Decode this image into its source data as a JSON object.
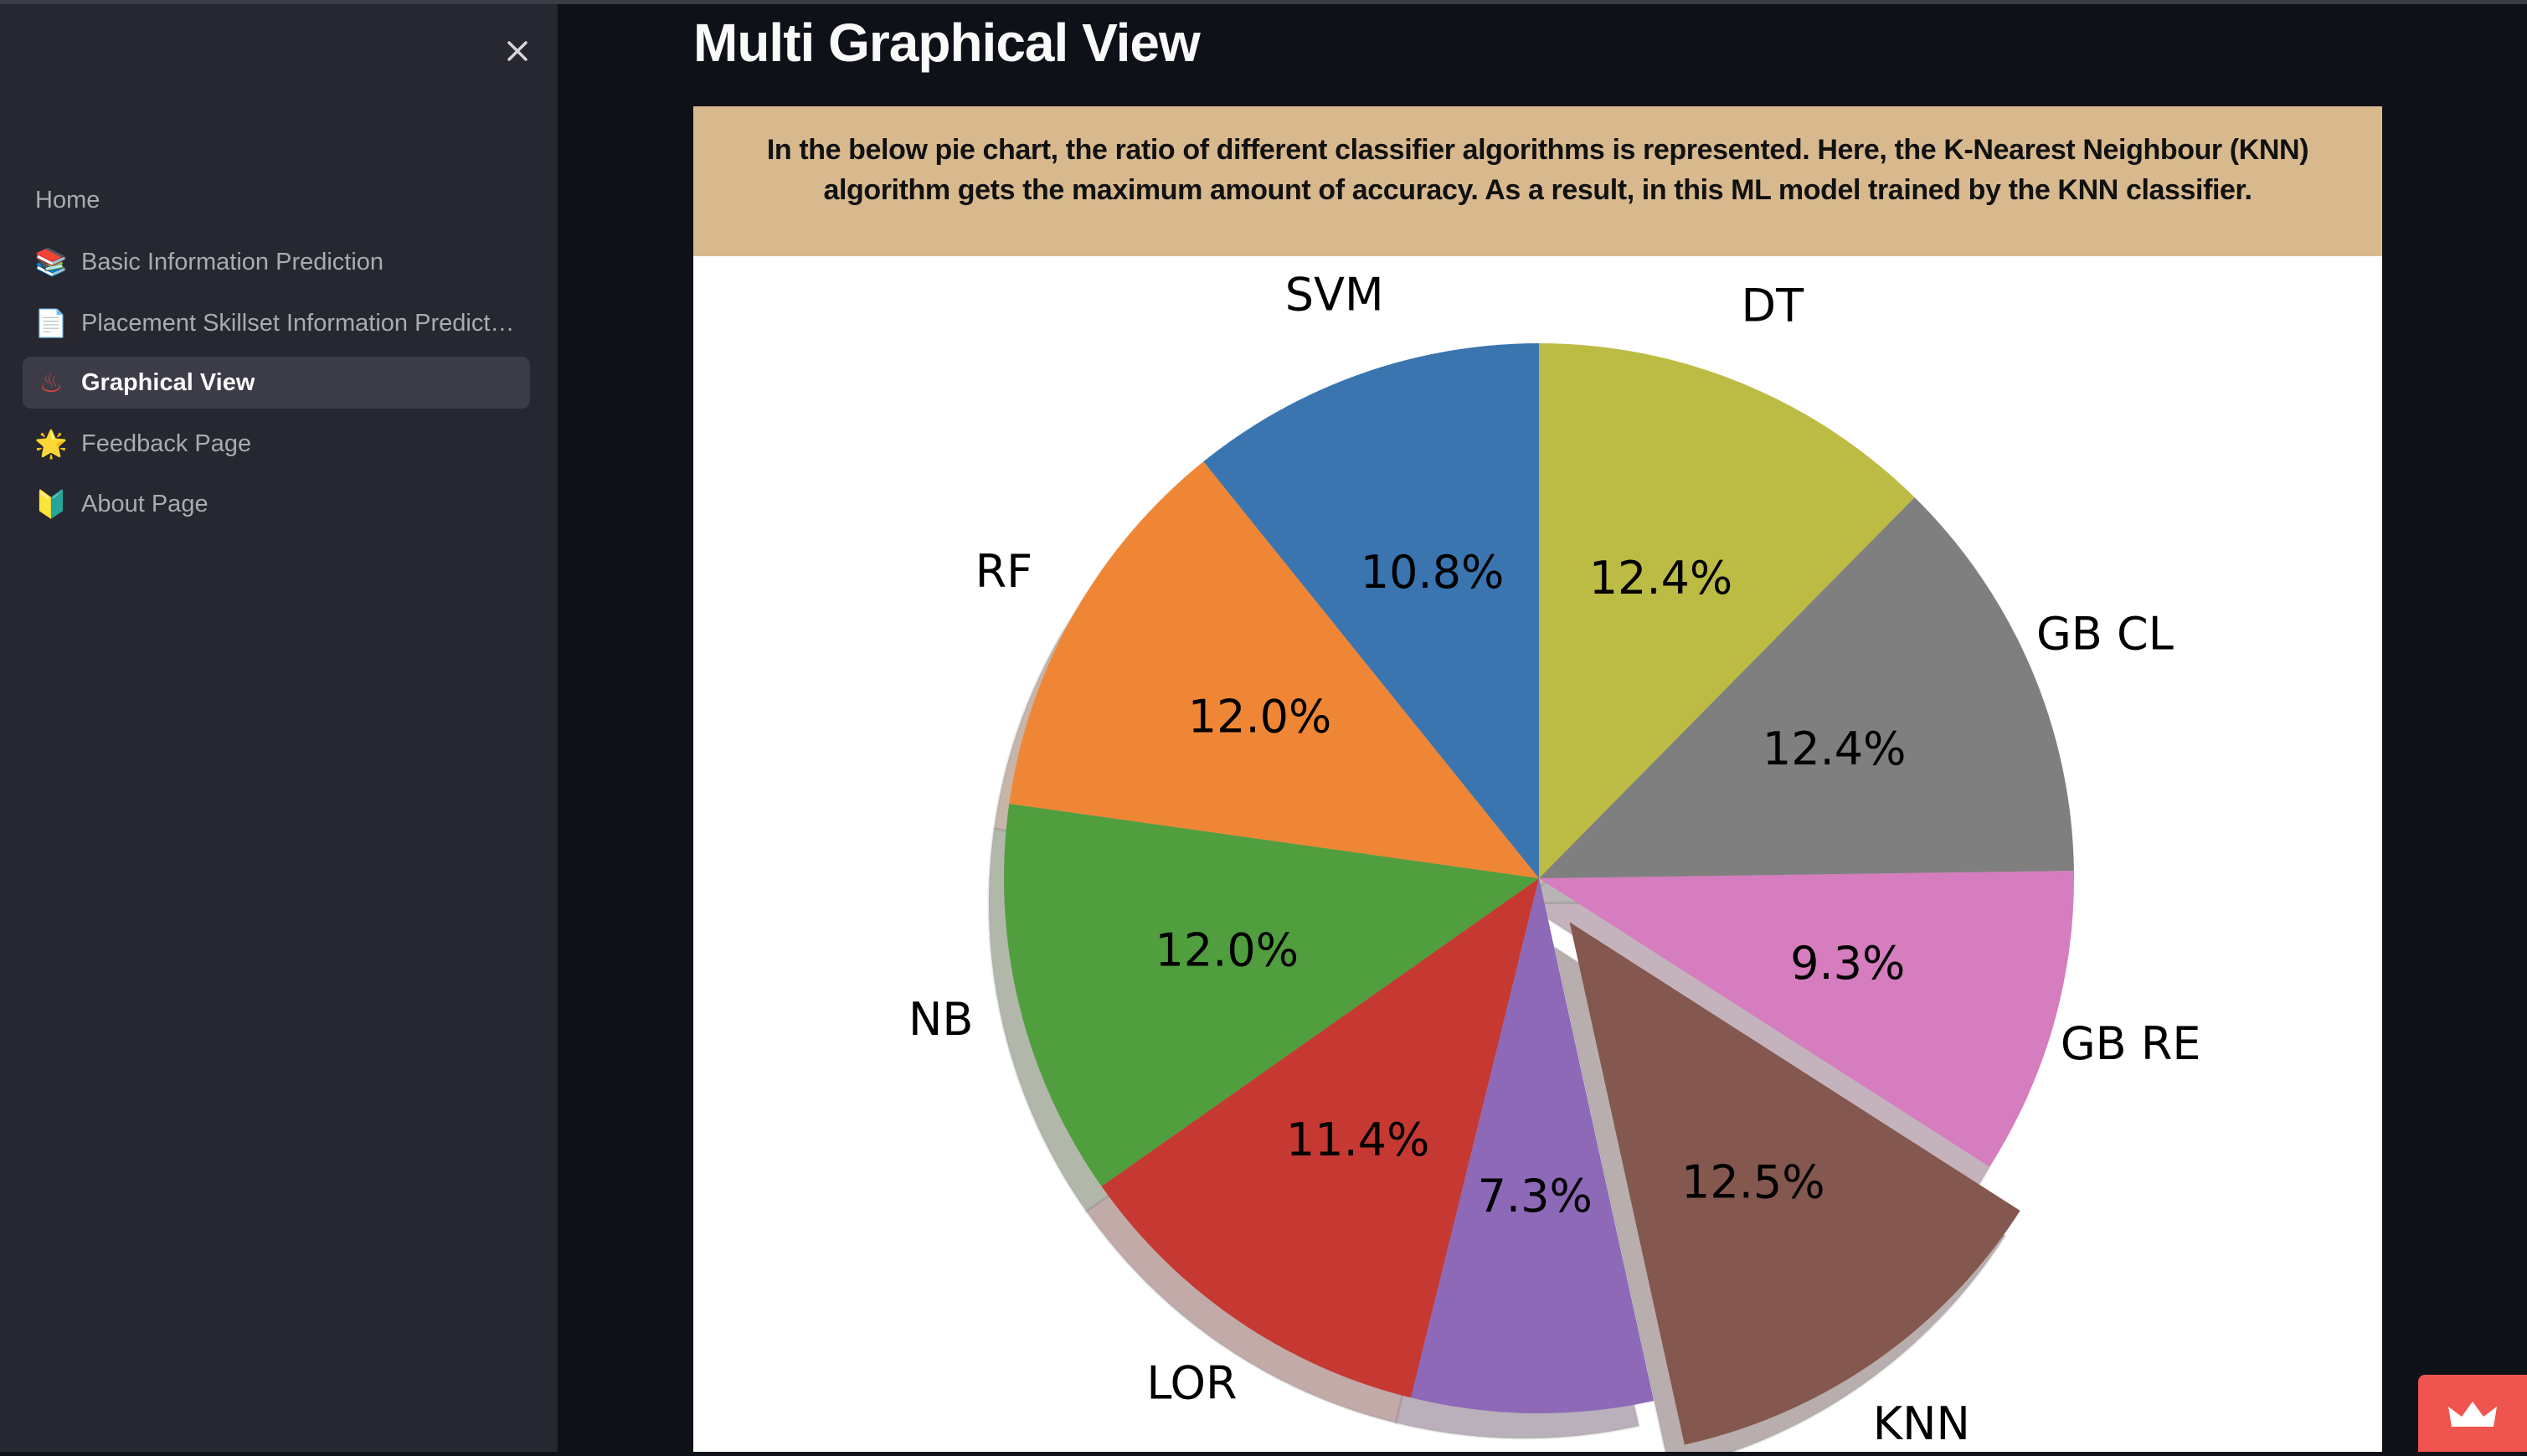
{
  "sidebar": {
    "close_icon": "close-icon",
    "home": "Home",
    "items": [
      {
        "label": "Basic Information Prediction",
        "icon": "books-icon",
        "glyph": "📚",
        "active": false
      },
      {
        "label": "Placement Skillset Information Prediction",
        "icon": "page-icon",
        "glyph": "📄",
        "active": false
      },
      {
        "label": "Graphical View",
        "icon": "hot-springs-icon",
        "glyph": "♨",
        "active": true
      },
      {
        "label": "Feedback Page",
        "icon": "glowing-star-icon",
        "glyph": "🌟",
        "active": false
      },
      {
        "label": "About Page",
        "icon": "beginner-icon",
        "glyph": "🔰",
        "active": false
      }
    ]
  },
  "main": {
    "title": "Multi Graphical View",
    "info": "In the below pie chart, the ratio of different classifier algorithms is represented. Here, the K-Nearest Neighbour (KNN) algorithm gets the maximum amount of accuracy. As a result, in this ML model trained by the KNN classifier."
  },
  "colors": {
    "sidebar_bg": "#262730",
    "main_bg": "#0e1117",
    "info_bg": "#d8b98e",
    "badge": "#f0544f"
  },
  "chart_data": {
    "type": "pie",
    "start_angle": 90,
    "direction": "counterclockwise",
    "shadow": true,
    "categories": [
      "SVM",
      "RF",
      "NB",
      "LOR",
      "",
      "KNN",
      "GB RE",
      "GB CL",
      "DT"
    ],
    "values": [
      10.8,
      12.0,
      12.0,
      11.4,
      7.3,
      12.5,
      9.3,
      12.4,
      12.4
    ],
    "value_labels": [
      "10.8%",
      "12.0%",
      "12.0%",
      "11.4%",
      "7.3%",
      "12.5%",
      "9.3%",
      "12.4%",
      "12.4%"
    ],
    "exploded": [
      "KNN"
    ],
    "colors": [
      "#3a75af",
      "#ef8636",
      "#519e3e",
      "#c53932",
      "#8d69b8",
      "#84584e",
      "#d57dbe",
      "#7f7f7f",
      "#bcbc45"
    ]
  }
}
